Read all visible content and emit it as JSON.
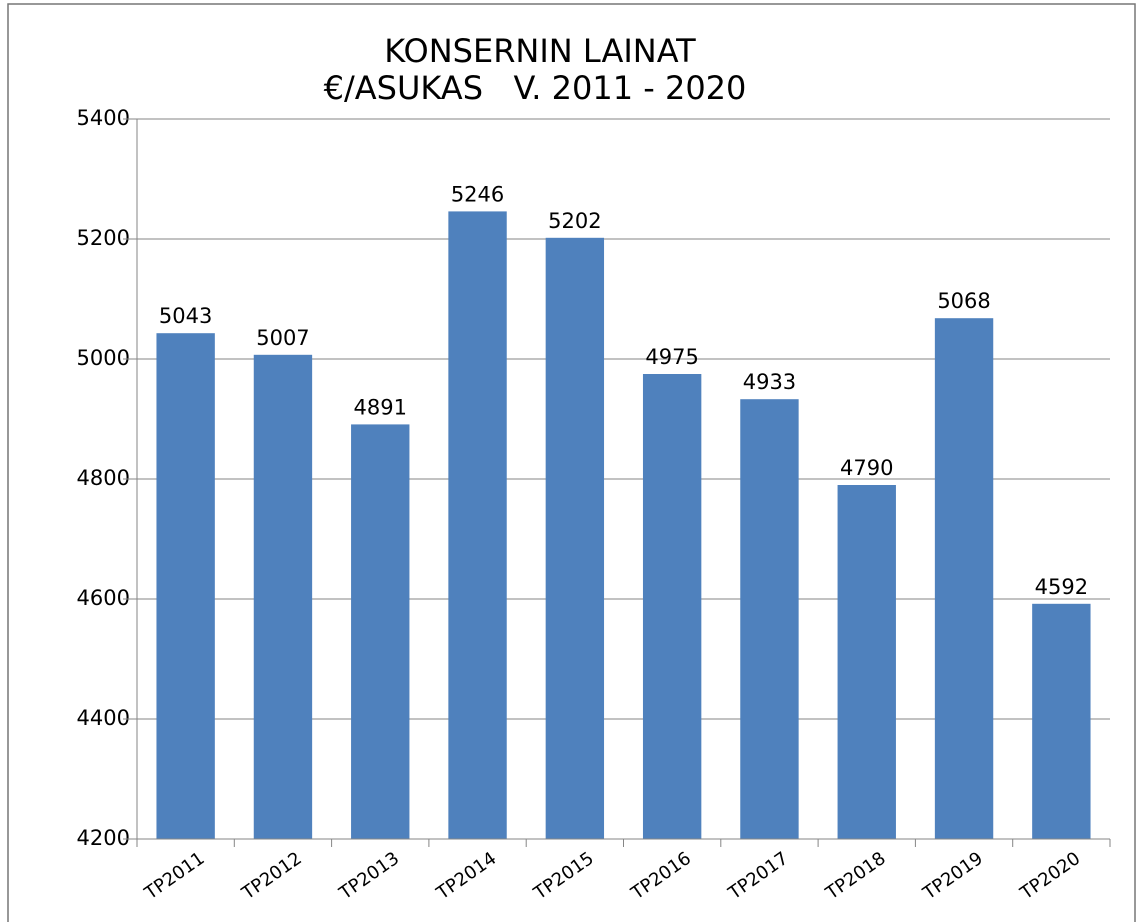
{
  "chart_data": {
    "type": "bar",
    "title": [
      "KONSERNIN LAINAT",
      "€/ASUKAS   V. 2011 - 2020"
    ],
    "categories": [
      "TP2011",
      "TP2012",
      "TP2013",
      "TP2014",
      "TP2015",
      "TP2016",
      "TP2017",
      "TP2018",
      "TP2019",
      "TP2020"
    ],
    "values": [
      5043,
      5007,
      4891,
      5246,
      5202,
      4975,
      4933,
      4790,
      5068,
      4592
    ],
    "color": "#4f81bd",
    "ylim": [
      4200,
      5400
    ],
    "yticks": [
      4200,
      4400,
      4600,
      4800,
      5000,
      5200,
      5400
    ],
    "grid": true
  }
}
